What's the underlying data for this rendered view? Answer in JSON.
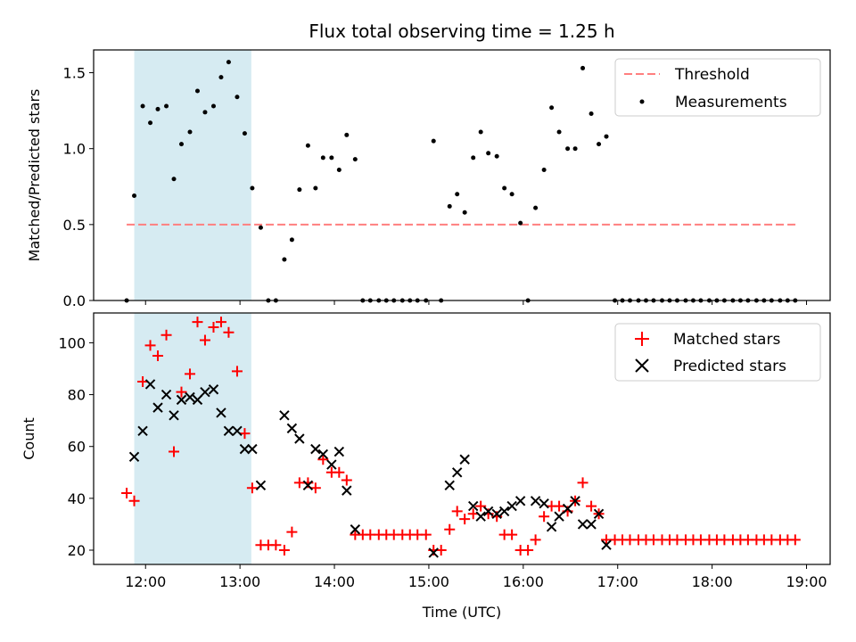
{
  "chart_data": [
    {
      "type": "scatter",
      "title": "Flux total observing time = 1.25 h",
      "xlabel": "",
      "ylabel": "Matched/Predicted stars",
      "xlim": [
        11.45,
        19.25
      ],
      "ylim": [
        0,
        1.65
      ],
      "yticks": [
        0.0,
        0.5,
        1.0,
        1.5
      ],
      "ytick_labels": [
        "0.0",
        "0.5",
        "1.0",
        "1.5"
      ],
      "grid": false,
      "legend_position": "top-right",
      "shaded_span": {
        "x0": 11.88,
        "x1": 13.12,
        "color": "#add8e6"
      },
      "threshold": {
        "name": "Threshold",
        "value": 0.5,
        "x0": 11.8,
        "x1": 18.9,
        "color": "#ff7f7f"
      },
      "series": [
        {
          "name": "Measurements",
          "color": "#000000",
          "x": [
            11.8,
            11.88,
            11.97,
            12.05,
            12.13,
            12.22,
            12.3,
            12.38,
            12.47,
            12.55,
            12.63,
            12.72,
            12.8,
            12.88,
            12.97,
            13.05,
            13.13,
            13.22,
            13.3,
            13.38,
            13.47,
            13.55,
            13.63,
            13.72,
            13.8,
            13.88,
            13.97,
            14.05,
            14.13,
            14.22,
            14.3,
            14.38,
            14.47,
            14.55,
            14.63,
            14.72,
            14.8,
            14.88,
            14.97,
            15.05,
            15.13,
            15.22,
            15.3,
            15.38,
            15.47,
            15.55,
            15.63,
            15.72,
            15.8,
            15.88,
            15.97,
            16.05,
            16.13,
            16.22,
            16.3,
            16.38,
            16.47,
            16.55,
            16.63,
            16.72,
            16.8,
            16.88,
            16.97,
            17.05,
            17.13,
            17.22,
            17.3,
            17.38,
            17.47,
            17.55,
            17.63,
            17.72,
            17.8,
            17.88,
            17.97,
            18.05,
            18.13,
            18.22,
            18.3,
            18.38,
            18.47,
            18.55,
            18.63,
            18.72,
            18.8,
            18.88
          ],
          "values": [
            0.0,
            0.69,
            1.28,
            1.17,
            1.26,
            1.28,
            0.8,
            1.03,
            1.11,
            1.38,
            1.24,
            1.28,
            1.47,
            1.57,
            1.34,
            1.1,
            0.74,
            0.48,
            0.0,
            0.0,
            0.27,
            0.4,
            0.73,
            1.02,
            0.74,
            0.94,
            0.94,
            0.86,
            1.09,
            0.93,
            0.0,
            0.0,
            0.0,
            0.0,
            0.0,
            0.0,
            0.0,
            0.0,
            0.0,
            1.05,
            0.0,
            0.62,
            0.7,
            0.58,
            0.94,
            1.11,
            0.97,
            0.95,
            0.74,
            0.7,
            0.51,
            0.0,
            0.61,
            0.86,
            1.27,
            1.11,
            1.0,
            1.0,
            1.53,
            1.23,
            1.03,
            1.08,
            0.0,
            0.0,
            0.0,
            0.0,
            0.0,
            0.0,
            0.0,
            0.0,
            0.0,
            0.0,
            0.0,
            0.0,
            0.0,
            0.0,
            0.0,
            0.0,
            0.0,
            0.0,
            0.0,
            0.0,
            0.0,
            0.0,
            0.0,
            0.0
          ]
        }
      ]
    },
    {
      "type": "scatter",
      "title": "",
      "xlabel": "Time (UTC)",
      "ylabel": "Count",
      "xlim": [
        11.45,
        19.25
      ],
      "ylim": [
        14.5,
        111.5
      ],
      "yticks": [
        20,
        40,
        60,
        80,
        100
      ],
      "ytick_labels": [
        "20",
        "40",
        "60",
        "80",
        "100"
      ],
      "xticks": [
        12,
        13,
        14,
        15,
        16,
        17,
        18,
        19
      ],
      "xtick_labels": [
        "12:00",
        "13:00",
        "14:00",
        "15:00",
        "16:00",
        "17:00",
        "18:00",
        "19:00"
      ],
      "grid": false,
      "legend_position": "top-right",
      "shaded_span": {
        "x0": 11.88,
        "x1": 13.12,
        "color": "#add8e6"
      },
      "series": [
        {
          "name": "Matched stars",
          "marker": "+",
          "color": "#ff0000",
          "x": [
            11.8,
            11.88,
            11.97,
            12.05,
            12.13,
            12.22,
            12.3,
            12.38,
            12.47,
            12.55,
            12.63,
            12.72,
            12.8,
            12.88,
            12.97,
            13.05,
            13.13,
            13.22,
            13.3,
            13.38,
            13.47,
            13.55,
            13.63,
            13.72,
            13.8,
            13.88,
            13.97,
            14.05,
            14.13,
            14.22,
            14.3,
            14.38,
            14.47,
            14.55,
            14.63,
            14.72,
            14.8,
            14.88,
            14.97,
            15.05,
            15.13,
            15.22,
            15.3,
            15.38,
            15.47,
            15.55,
            15.63,
            15.72,
            15.8,
            15.88,
            15.97,
            16.05,
            16.13,
            16.22,
            16.3,
            16.38,
            16.47,
            16.55,
            16.63,
            16.72,
            16.8,
            16.88,
            16.97,
            17.05,
            17.13,
            17.22,
            17.3,
            17.38,
            17.47,
            17.55,
            17.63,
            17.72,
            17.8,
            17.88,
            17.97,
            18.05,
            18.13,
            18.22,
            18.3,
            18.38,
            18.47,
            18.55,
            18.63,
            18.72,
            18.8,
            18.88
          ],
          "values": [
            42,
            39,
            85,
            99,
            95,
            103,
            58,
            81,
            88,
            108,
            101,
            106,
            108,
            104,
            89,
            65,
            44,
            22,
            22,
            22,
            20,
            27,
            46,
            46,
            44,
            55,
            50,
            50,
            47,
            26,
            26,
            26,
            26,
            26,
            26,
            26,
            26,
            26,
            26,
            20,
            20,
            28,
            35,
            32,
            34,
            37,
            34,
            33,
            26,
            26,
            20,
            20,
            24,
            33,
            37,
            37,
            35,
            39,
            46,
            37,
            34,
            24,
            24,
            24,
            24,
            24,
            24,
            24,
            24,
            24,
            24,
            24,
            24,
            24,
            24,
            24,
            24,
            24,
            24,
            24,
            24,
            24,
            24,
            24,
            24,
            24
          ]
        },
        {
          "name": "Predicted stars",
          "marker": "x",
          "color": "#000000",
          "x": [
            11.88,
            11.97,
            12.05,
            12.13,
            12.22,
            12.3,
            12.38,
            12.47,
            12.55,
            12.63,
            12.72,
            12.8,
            12.88,
            12.97,
            13.05,
            13.13,
            13.22,
            13.47,
            13.55,
            13.63,
            13.72,
            13.8,
            13.88,
            13.97,
            14.05,
            14.13,
            14.22,
            15.05,
            15.22,
            15.3,
            15.38,
            15.47,
            15.55,
            15.63,
            15.72,
            15.8,
            15.88,
            15.97,
            16.13,
            16.22,
            16.3,
            16.38,
            16.47,
            16.55,
            16.63,
            16.72,
            16.8,
            16.88
          ],
          "values": [
            56,
            66,
            84,
            75,
            80,
            72,
            78,
            79,
            78,
            81,
            82,
            73,
            66,
            66,
            59,
            59,
            45,
            72,
            67,
            63,
            45,
            59,
            57,
            53,
            58,
            43,
            28,
            19,
            45,
            50,
            55,
            37,
            33,
            35,
            34,
            35,
            37,
            39,
            39,
            38,
            29,
            33,
            36,
            39,
            30,
            30,
            34,
            22
          ]
        }
      ]
    }
  ]
}
